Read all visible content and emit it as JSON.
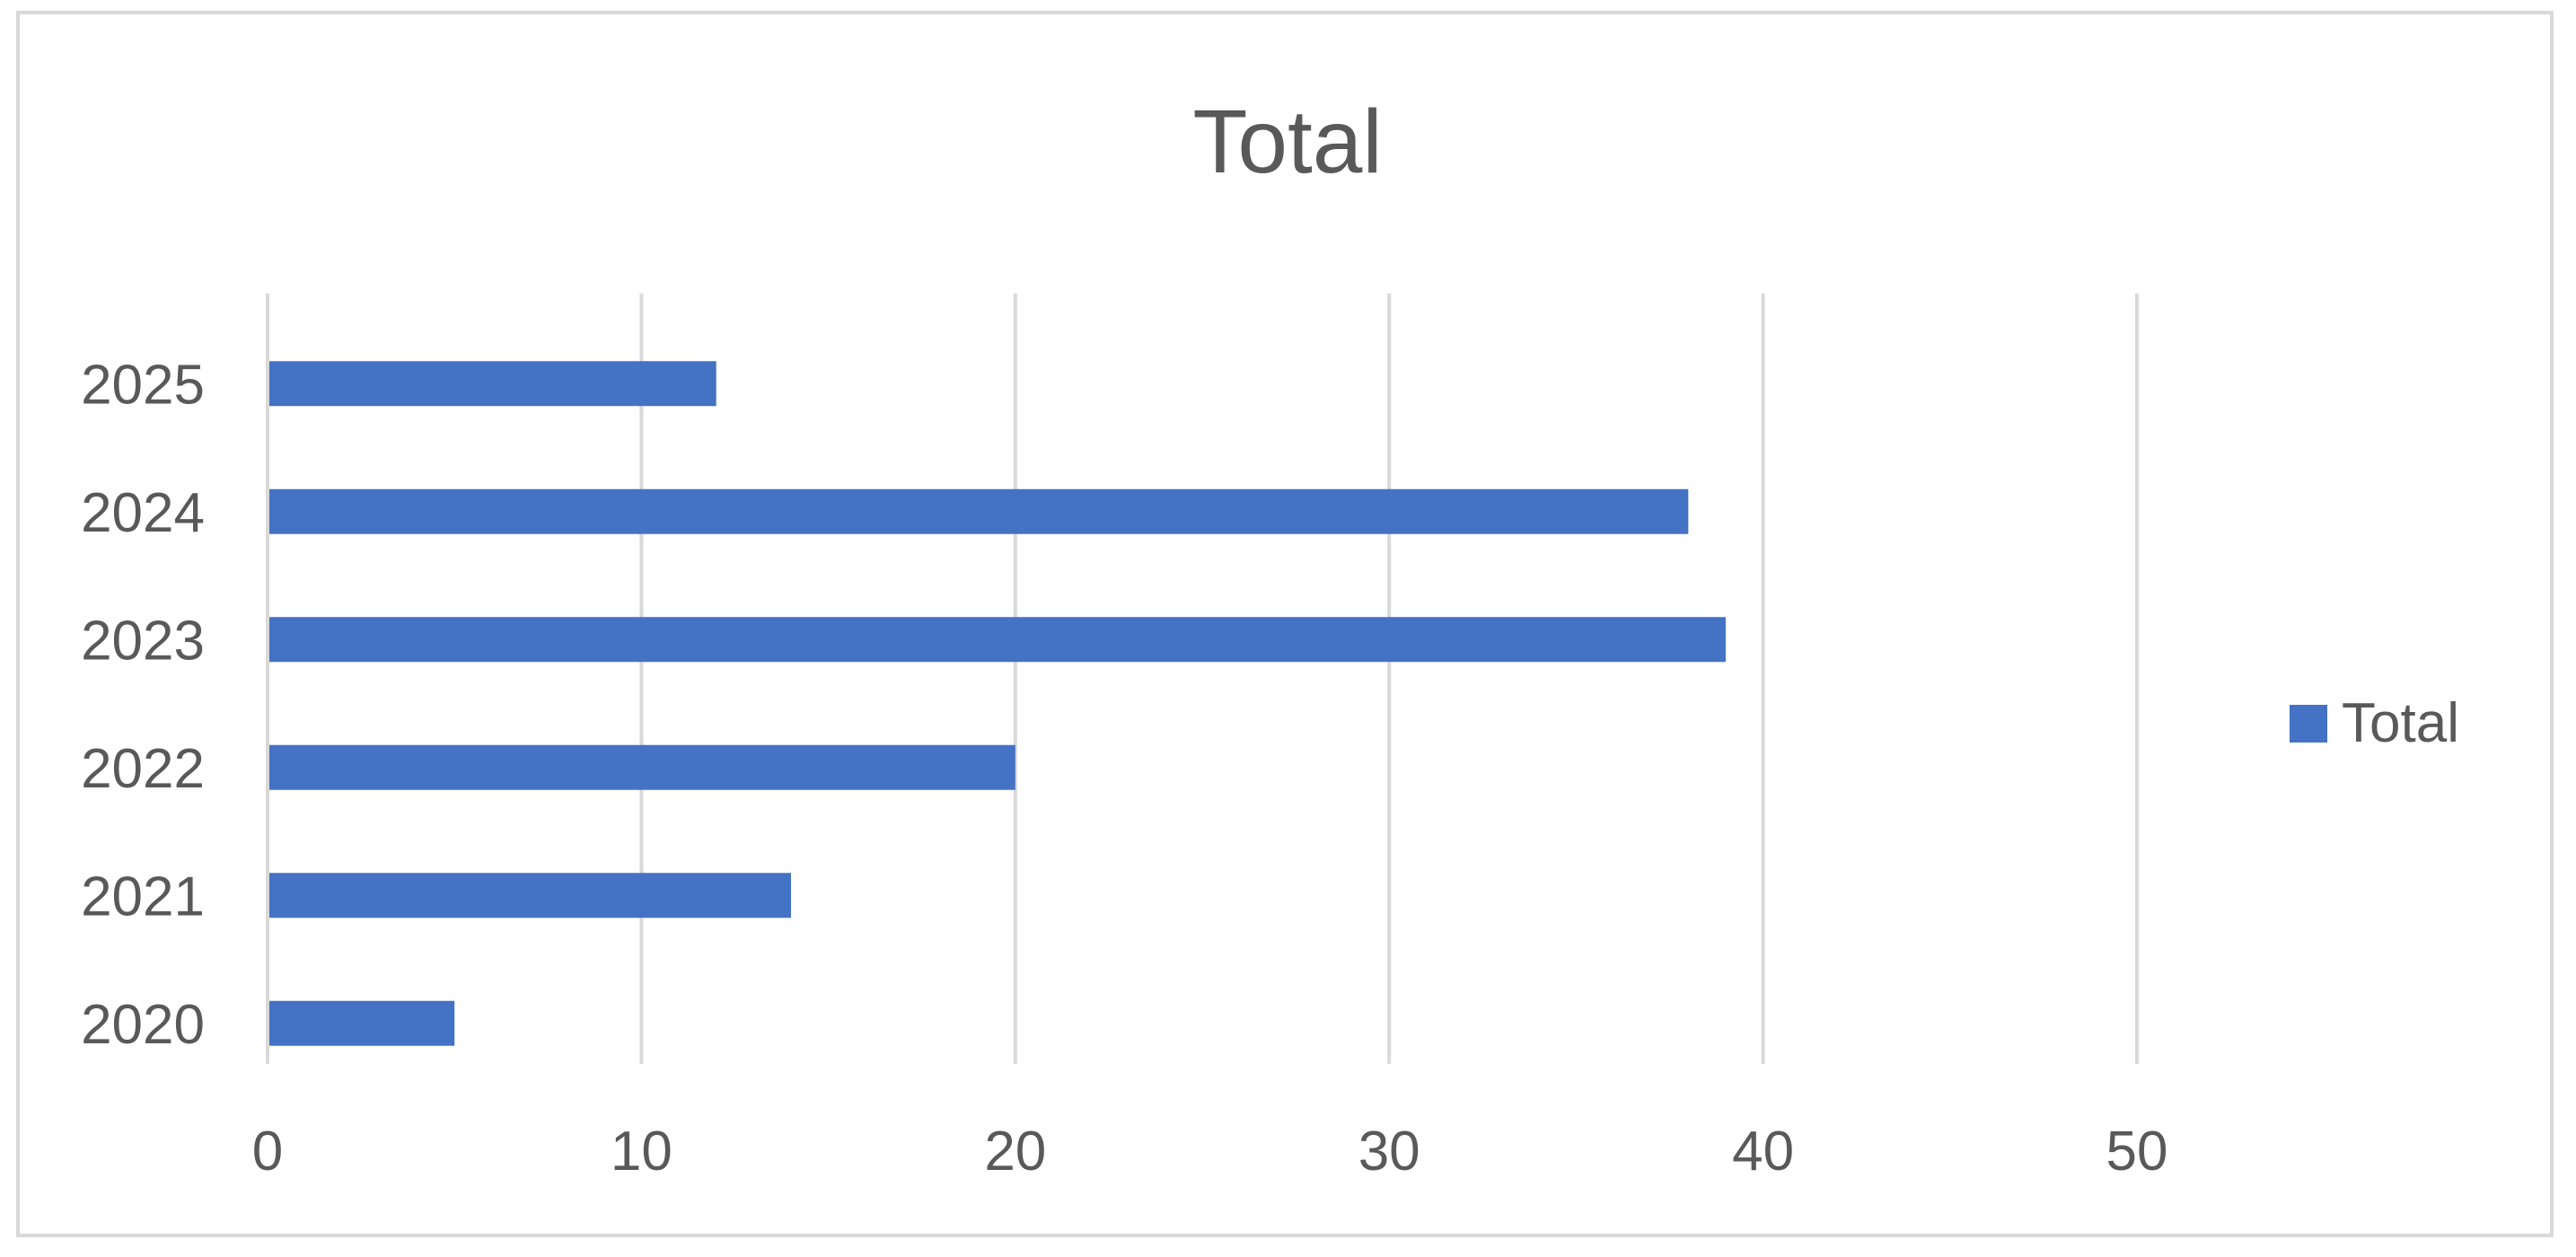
{
  "chart_data": {
    "type": "bar",
    "orientation": "horizontal",
    "title": "Total",
    "categories": [
      "2020",
      "2021",
      "2022",
      "2023",
      "2024",
      "2025"
    ],
    "series": [
      {
        "name": "Total",
        "color": "#4472c4",
        "values": [
          5,
          14,
          20,
          39,
          38,
          12
        ]
      }
    ],
    "x_ticks": [
      "0",
      "10",
      "20",
      "30",
      "40",
      "50"
    ],
    "xlim": [
      0,
      50
    ],
    "grid": "vertical",
    "legend": "right"
  }
}
